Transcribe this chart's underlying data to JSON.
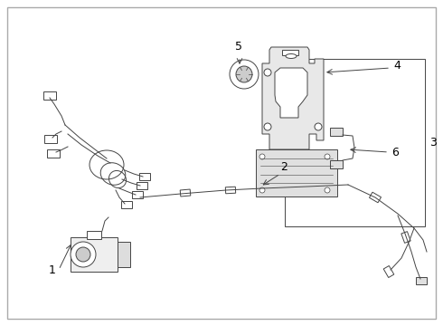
{
  "bg_color": "#ffffff",
  "line_color": "#444444",
  "text_color": "#000000",
  "figsize": [
    4.9,
    3.6
  ],
  "dpi": 100
}
